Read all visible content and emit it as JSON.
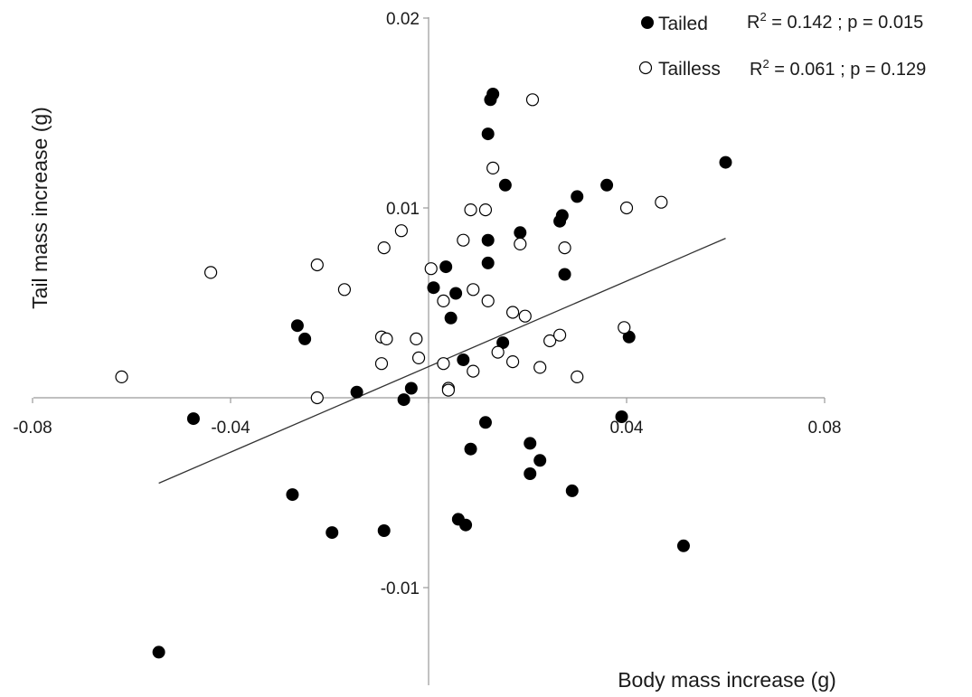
{
  "chart_data": {
    "type": "scatter",
    "xlabel": "Body mass increase (g)",
    "ylabel": "Tail mass increase (g)",
    "xlim": [
      -0.08,
      0.08
    ],
    "ylim": [
      -0.015,
      0.02
    ],
    "x_ticks": [
      -0.08,
      -0.04,
      0.04,
      0.08
    ],
    "x_tick_labels": [
      "-0.08",
      "-0.04",
      "0.04",
      "0.08"
    ],
    "y_ticks": [
      0.02,
      0.01,
      -0.01
    ],
    "y_tick_labels": [
      "0.02",
      "0.01",
      "-0.01"
    ],
    "legend_position": "top-right",
    "series": [
      {
        "name": "Tailed",
        "marker": "filled-circle",
        "color": "#000000",
        "stats_r2": "0.142",
        "stats_p": "0.015",
        "points": [
          [
            -0.0545,
            -0.0134
          ],
          [
            -0.0475,
            -0.0011
          ],
          [
            -0.0275,
            -0.0051
          ],
          [
            -0.0265,
            0.0038
          ],
          [
            -0.025,
            0.0031
          ],
          [
            -0.0195,
            -0.0071
          ],
          [
            -0.0145,
            0.0003
          ],
          [
            -0.0095,
            0.0032
          ],
          [
            -0.009,
            -0.007
          ],
          [
            -0.005,
            -0.0001
          ],
          [
            -0.0035,
            0.0005
          ],
          [
            0.001,
            0.0058
          ],
          [
            0.0035,
            0.0069
          ],
          [
            0.0045,
            0.0042
          ],
          [
            0.0055,
            0.0055
          ],
          [
            0.006,
            -0.0064
          ],
          [
            0.007,
            0.002
          ],
          [
            0.0075,
            -0.0067
          ],
          [
            0.0085,
            -0.0027
          ],
          [
            0.0115,
            -0.0013
          ],
          [
            0.012,
            0.0139
          ],
          [
            0.012,
            0.0083
          ],
          [
            0.012,
            0.0071
          ],
          [
            0.0125,
            0.0157
          ],
          [
            0.013,
            0.016
          ],
          [
            0.015,
            0.0029
          ],
          [
            0.0155,
            0.0112
          ],
          [
            0.0185,
            0.0087
          ],
          [
            0.0205,
            -0.0024
          ],
          [
            0.0205,
            -0.004
          ],
          [
            0.0225,
            -0.0033
          ],
          [
            0.0265,
            0.0093
          ],
          [
            0.027,
            0.0096
          ],
          [
            0.0275,
            0.0065
          ],
          [
            0.029,
            -0.0049
          ],
          [
            0.03,
            0.0106
          ],
          [
            0.036,
            0.0112
          ],
          [
            0.039,
            -0.001
          ],
          [
            0.0405,
            0.0032
          ],
          [
            0.0515,
            -0.0078
          ],
          [
            0.06,
            0.0124
          ]
        ]
      },
      {
        "name": "Tailless",
        "marker": "open-circle",
        "color": "#000000",
        "stats_r2": "0.061",
        "stats_p": "0.129",
        "points": [
          [
            -0.062,
            0.0011
          ],
          [
            -0.044,
            0.0066
          ],
          [
            -0.0225,
            0.007
          ],
          [
            -0.0225,
            0.0
          ],
          [
            -0.017,
            0.0057
          ],
          [
            -0.0095,
            0.0032
          ],
          [
            -0.0095,
            0.0018
          ],
          [
            -0.009,
            0.0079
          ],
          [
            -0.0085,
            0.0031
          ],
          [
            -0.0055,
            0.0088
          ],
          [
            -0.0025,
            0.0031
          ],
          [
            -0.002,
            0.0021
          ],
          [
            0.0005,
            0.0068
          ],
          [
            0.003,
            0.0018
          ],
          [
            0.003,
            0.0051
          ],
          [
            0.004,
            0.0005
          ],
          [
            0.004,
            0.0004
          ],
          [
            0.007,
            0.0083
          ],
          [
            0.0085,
            0.0099
          ],
          [
            0.009,
            0.0057
          ],
          [
            0.009,
            0.0014
          ],
          [
            0.0115,
            0.0099
          ],
          [
            0.012,
            0.0051
          ],
          [
            0.013,
            0.0121
          ],
          [
            0.014,
            0.0024
          ],
          [
            0.017,
            0.0045
          ],
          [
            0.017,
            0.0019
          ],
          [
            0.0185,
            0.0081
          ],
          [
            0.0195,
            0.0043
          ],
          [
            0.021,
            0.0157
          ],
          [
            0.0225,
            0.0016
          ],
          [
            0.0245,
            0.003
          ],
          [
            0.0265,
            0.0033
          ],
          [
            0.0275,
            0.0079
          ],
          [
            0.03,
            0.0011
          ],
          [
            0.0395,
            0.0037
          ],
          [
            0.04,
            0.01
          ],
          [
            0.047,
            0.0103
          ]
        ]
      }
    ],
    "trendline": {
      "from": [
        -0.0545,
        -0.0045
      ],
      "to": [
        0.06,
        0.0084
      ]
    }
  }
}
